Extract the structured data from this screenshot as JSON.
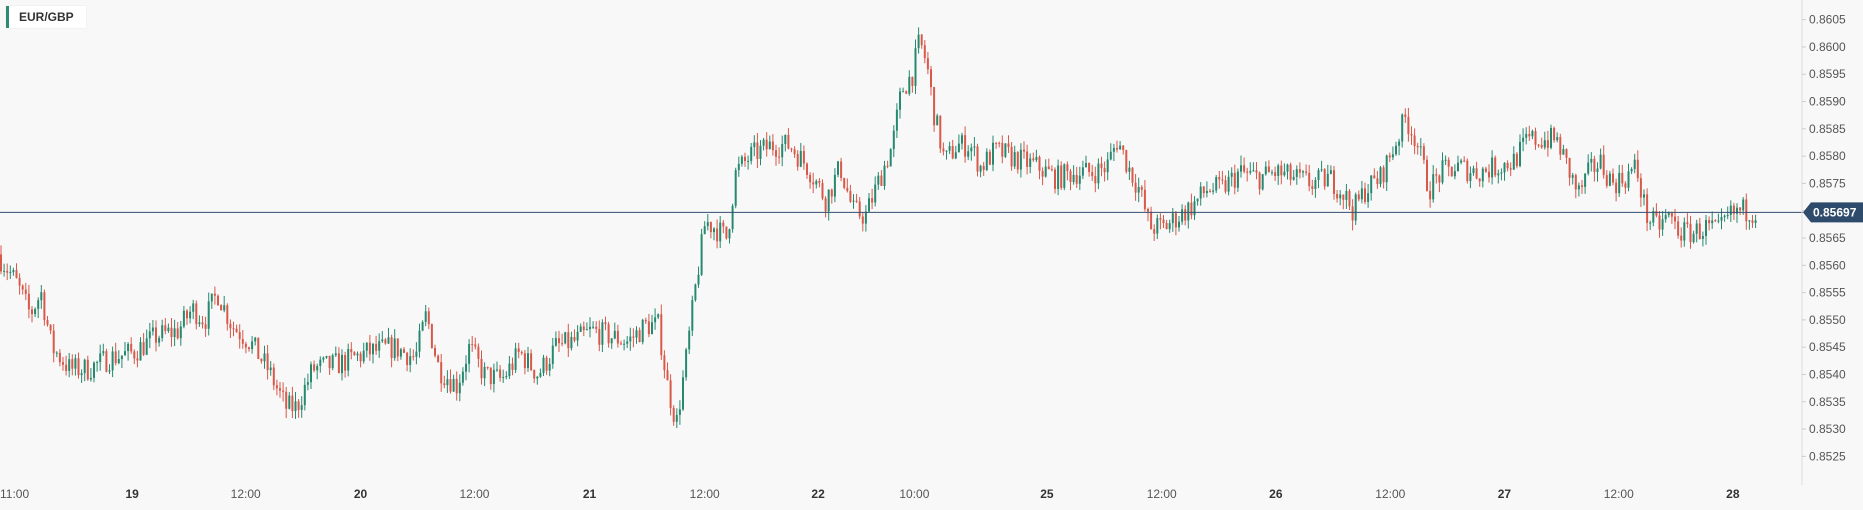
{
  "legend": {
    "symbol": "EUR/GBP"
  },
  "colors": {
    "up": "#26896f",
    "down": "#d8584a",
    "line": "#334e6e",
    "tag": "#2f4b6b",
    "bg": "#f8f8f8"
  },
  "chart_data": {
    "type": "candlestick",
    "symbol": "EUR/GBP",
    "last_price": "0.85697",
    "ylim": [
      0.85225,
      0.86075
    ],
    "y_ticks": [
      "0.8605",
      "0.8600",
      "0.8595",
      "0.8590",
      "0.8585",
      "0.8580",
      "0.8575",
      "0.8570",
      "0.8565",
      "0.8560",
      "0.8555",
      "0.8550",
      "0.8545",
      "0.8540",
      "0.8535",
      "0.8530",
      "0.8525"
    ],
    "x_ticks": [
      {
        "label": "11:00",
        "t": 0,
        "bold": false
      },
      {
        "label": "19",
        "t": 0.0734,
        "bold": true
      },
      {
        "label": "12:00",
        "t": 0.1365,
        "bold": false
      },
      {
        "label": "20",
        "t": 0.2003,
        "bold": true
      },
      {
        "label": "12:00",
        "t": 0.2636,
        "bold": false
      },
      {
        "label": "21",
        "t": 0.3275,
        "bold": true
      },
      {
        "label": "12:00",
        "t": 0.3915,
        "bold": false
      },
      {
        "label": "22",
        "t": 0.4545,
        "bold": true
      },
      {
        "label": "10:00",
        "t": 0.508,
        "bold": false
      },
      {
        "label": "25",
        "t": 0.5816,
        "bold": true
      },
      {
        "label": "12:00",
        "t": 0.6454,
        "bold": false
      },
      {
        "label": "26",
        "t": 0.7088,
        "bold": true
      },
      {
        "label": "12:00",
        "t": 0.7724,
        "bold": false
      },
      {
        "label": "27",
        "t": 0.8358,
        "bold": true
      },
      {
        "label": "12:00",
        "t": 0.8993,
        "bold": false
      },
      {
        "label": "28",
        "t": 0.9627,
        "bold": true
      }
    ],
    "series": [
      {
        "t": 0.0,
        "p": 0.8562
      },
      {
        "t": 0.01,
        "p": 0.8557
      },
      {
        "t": 0.018,
        "p": 0.8551
      },
      {
        "t": 0.024,
        "p": 0.8555
      },
      {
        "t": 0.03,
        "p": 0.8545
      },
      {
        "t": 0.04,
        "p": 0.8541
      },
      {
        "t": 0.05,
        "p": 0.8541
      },
      {
        "t": 0.062,
        "p": 0.8543
      },
      {
        "t": 0.075,
        "p": 0.8544
      },
      {
        "t": 0.088,
        "p": 0.8547
      },
      {
        "t": 0.1,
        "p": 0.8548
      },
      {
        "t": 0.108,
        "p": 0.8552
      },
      {
        "t": 0.115,
        "p": 0.855
      },
      {
        "t": 0.122,
        "p": 0.8555
      },
      {
        "t": 0.13,
        "p": 0.8549
      },
      {
        "t": 0.14,
        "p": 0.8546
      },
      {
        "t": 0.15,
        "p": 0.8541
      },
      {
        "t": 0.16,
        "p": 0.8534
      },
      {
        "t": 0.166,
        "p": 0.8534
      },
      {
        "t": 0.175,
        "p": 0.8541
      },
      {
        "t": 0.19,
        "p": 0.8542
      },
      {
        "t": 0.205,
        "p": 0.8544
      },
      {
        "t": 0.22,
        "p": 0.8545
      },
      {
        "t": 0.232,
        "p": 0.8543
      },
      {
        "t": 0.238,
        "p": 0.8551
      },
      {
        "t": 0.245,
        "p": 0.8541
      },
      {
        "t": 0.255,
        "p": 0.8538
      },
      {
        "t": 0.262,
        "p": 0.8545
      },
      {
        "t": 0.27,
        "p": 0.854
      },
      {
        "t": 0.28,
        "p": 0.8539
      },
      {
        "t": 0.29,
        "p": 0.8544
      },
      {
        "t": 0.3,
        "p": 0.854
      },
      {
        "t": 0.31,
        "p": 0.8545
      },
      {
        "t": 0.32,
        "p": 0.8546
      },
      {
        "t": 0.33,
        "p": 0.8548
      },
      {
        "t": 0.34,
        "p": 0.8547
      },
      {
        "t": 0.35,
        "p": 0.8546
      },
      {
        "t": 0.36,
        "p": 0.8549
      },
      {
        "t": 0.367,
        "p": 0.8549
      },
      {
        "t": 0.372,
        "p": 0.8538
      },
      {
        "t": 0.377,
        "p": 0.8531
      },
      {
        "t": 0.382,
        "p": 0.8542
      },
      {
        "t": 0.388,
        "p": 0.8557
      },
      {
        "t": 0.393,
        "p": 0.8568
      },
      {
        "t": 0.398,
        "p": 0.8567
      },
      {
        "t": 0.405,
        "p": 0.8565
      },
      {
        "t": 0.41,
        "p": 0.8577
      },
      {
        "t": 0.418,
        "p": 0.858
      },
      {
        "t": 0.43,
        "p": 0.8582
      },
      {
        "t": 0.44,
        "p": 0.8582
      },
      {
        "t": 0.45,
        "p": 0.8578
      },
      {
        "t": 0.46,
        "p": 0.8572
      },
      {
        "t": 0.468,
        "p": 0.8578
      },
      {
        "t": 0.475,
        "p": 0.857
      },
      {
        "t": 0.482,
        "p": 0.8569
      },
      {
        "t": 0.49,
        "p": 0.8576
      },
      {
        "t": 0.497,
        "p": 0.8582
      },
      {
        "t": 0.502,
        "p": 0.8592
      },
      {
        "t": 0.508,
        "p": 0.8595
      },
      {
        "t": 0.512,
        "p": 0.8601
      },
      {
        "t": 0.516,
        "p": 0.8597
      },
      {
        "t": 0.52,
        "p": 0.8588
      },
      {
        "t": 0.526,
        "p": 0.8579
      },
      {
        "t": 0.533,
        "p": 0.8582
      },
      {
        "t": 0.54,
        "p": 0.8582
      },
      {
        "t": 0.546,
        "p": 0.8578
      },
      {
        "t": 0.554,
        "p": 0.8581
      },
      {
        "t": 0.562,
        "p": 0.858
      },
      {
        "t": 0.57,
        "p": 0.8579
      },
      {
        "t": 0.578,
        "p": 0.8578
      },
      {
        "t": 0.588,
        "p": 0.8576
      },
      {
        "t": 0.598,
        "p": 0.8577
      },
      {
        "t": 0.608,
        "p": 0.8577
      },
      {
        "t": 0.616,
        "p": 0.8578
      },
      {
        "t": 0.622,
        "p": 0.8583
      },
      {
        "t": 0.628,
        "p": 0.8578
      },
      {
        "t": 0.634,
        "p": 0.8574
      },
      {
        "t": 0.64,
        "p": 0.8567
      },
      {
        "t": 0.648,
        "p": 0.8567
      },
      {
        "t": 0.656,
        "p": 0.8569
      },
      {
        "t": 0.664,
        "p": 0.8571
      },
      {
        "t": 0.672,
        "p": 0.8574
      },
      {
        "t": 0.68,
        "p": 0.8574
      },
      {
        "t": 0.69,
        "p": 0.8577
      },
      {
        "t": 0.7,
        "p": 0.8576
      },
      {
        "t": 0.71,
        "p": 0.8577
      },
      {
        "t": 0.72,
        "p": 0.8576
      },
      {
        "t": 0.73,
        "p": 0.8575
      },
      {
        "t": 0.74,
        "p": 0.8576
      },
      {
        "t": 0.748,
        "p": 0.8573
      },
      {
        "t": 0.753,
        "p": 0.857
      },
      {
        "t": 0.76,
        "p": 0.8574
      },
      {
        "t": 0.768,
        "p": 0.8576
      },
      {
        "t": 0.776,
        "p": 0.8582
      },
      {
        "t": 0.782,
        "p": 0.8587
      },
      {
        "t": 0.788,
        "p": 0.8583
      },
      {
        "t": 0.795,
        "p": 0.8574
      },
      {
        "t": 0.802,
        "p": 0.8577
      },
      {
        "t": 0.812,
        "p": 0.8578
      },
      {
        "t": 0.822,
        "p": 0.8577
      },
      {
        "t": 0.832,
        "p": 0.8578
      },
      {
        "t": 0.842,
        "p": 0.8579
      },
      {
        "t": 0.85,
        "p": 0.8583
      },
      {
        "t": 0.858,
        "p": 0.8583
      },
      {
        "t": 0.866,
        "p": 0.8583
      },
      {
        "t": 0.872,
        "p": 0.8578
      },
      {
        "t": 0.878,
        "p": 0.8573
      },
      {
        "t": 0.884,
        "p": 0.8577
      },
      {
        "t": 0.89,
        "p": 0.8579
      },
      {
        "t": 0.897,
        "p": 0.8575
      },
      {
        "t": 0.904,
        "p": 0.8576
      },
      {
        "t": 0.91,
        "p": 0.8578
      },
      {
        "t": 0.916,
        "p": 0.8569
      },
      {
        "t": 0.922,
        "p": 0.8567
      },
      {
        "t": 0.928,
        "p": 0.8569
      },
      {
        "t": 0.935,
        "p": 0.8566
      },
      {
        "t": 0.942,
        "p": 0.8566
      },
      {
        "t": 0.95,
        "p": 0.8567
      },
      {
        "t": 0.956,
        "p": 0.8566
      },
      {
        "t": 0.962,
        "p": 0.8569
      },
      {
        "t": 0.968,
        "p": 0.857
      },
      {
        "t": 0.975,
        "p": 0.857
      }
    ]
  }
}
